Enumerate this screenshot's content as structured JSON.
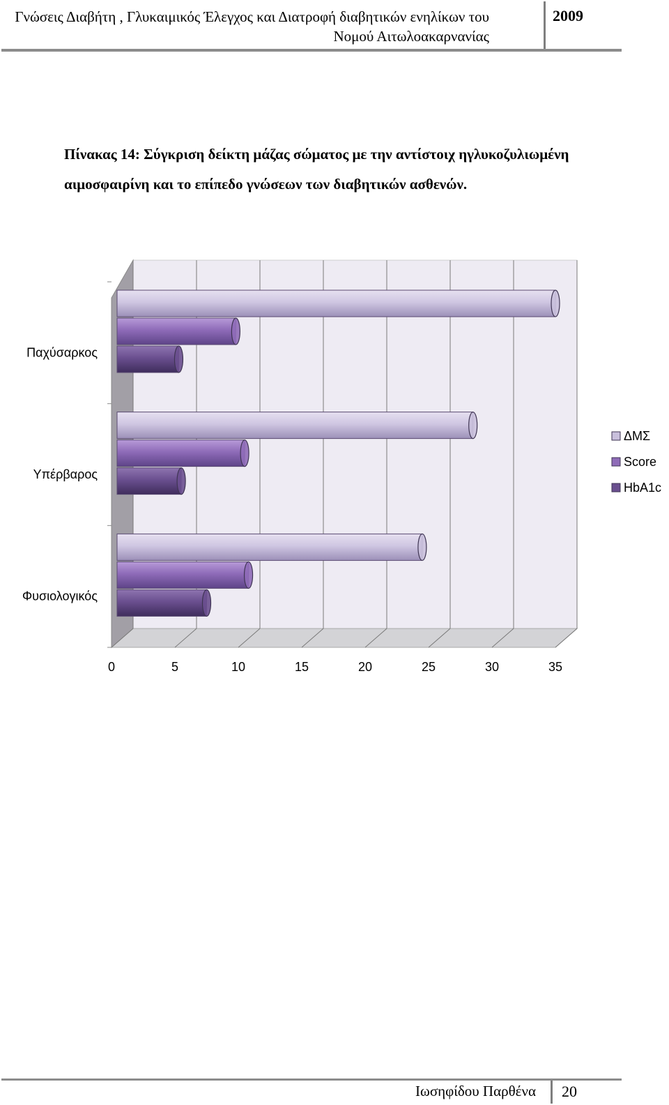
{
  "header": {
    "title_line1": "Γνώσεις Διαβήτη , Γλυκαιμικός Έλεγχος και Διατροφή διαβητικών ενηλίκων του",
    "title_line2": "Νομού Αιτωλοακαρνανίας",
    "year": "2009"
  },
  "caption": {
    "text": "Πίνακας 14: Σύγκριση δείκτη μάζας σώματος με την αντίστοιχ ηγλυκοζυλιωμένη αιμοσφαιρίνη και το επίπεδο γνώσεων των διαβητικών ασθενών."
  },
  "chart_data": {
    "type": "bar",
    "orientation": "horizontal",
    "categories": [
      "Φυσιολογικός",
      "Υπέρβαρος",
      "Παχύσαρκος"
    ],
    "series": [
      {
        "name": "ΔΜΣ",
        "values": [
          24.5,
          28.5,
          35
        ],
        "color": "#c9c0dc"
      },
      {
        "name": "Score",
        "values": [
          10.8,
          10.5,
          9.8
        ],
        "color": "#8f6cb8"
      },
      {
        "name": "HbA1c",
        "values": [
          7.5,
          5.5,
          5.3
        ],
        "color": "#6a4f8f"
      }
    ],
    "xticks": [
      "0",
      "5",
      "10",
      "15",
      "20",
      "25",
      "30",
      "35"
    ],
    "xlim": [
      0,
      35
    ],
    "grid": true,
    "legend_position": "right"
  },
  "footer": {
    "author": "Ιωσηφίδου Παρθένα",
    "page": "20"
  }
}
